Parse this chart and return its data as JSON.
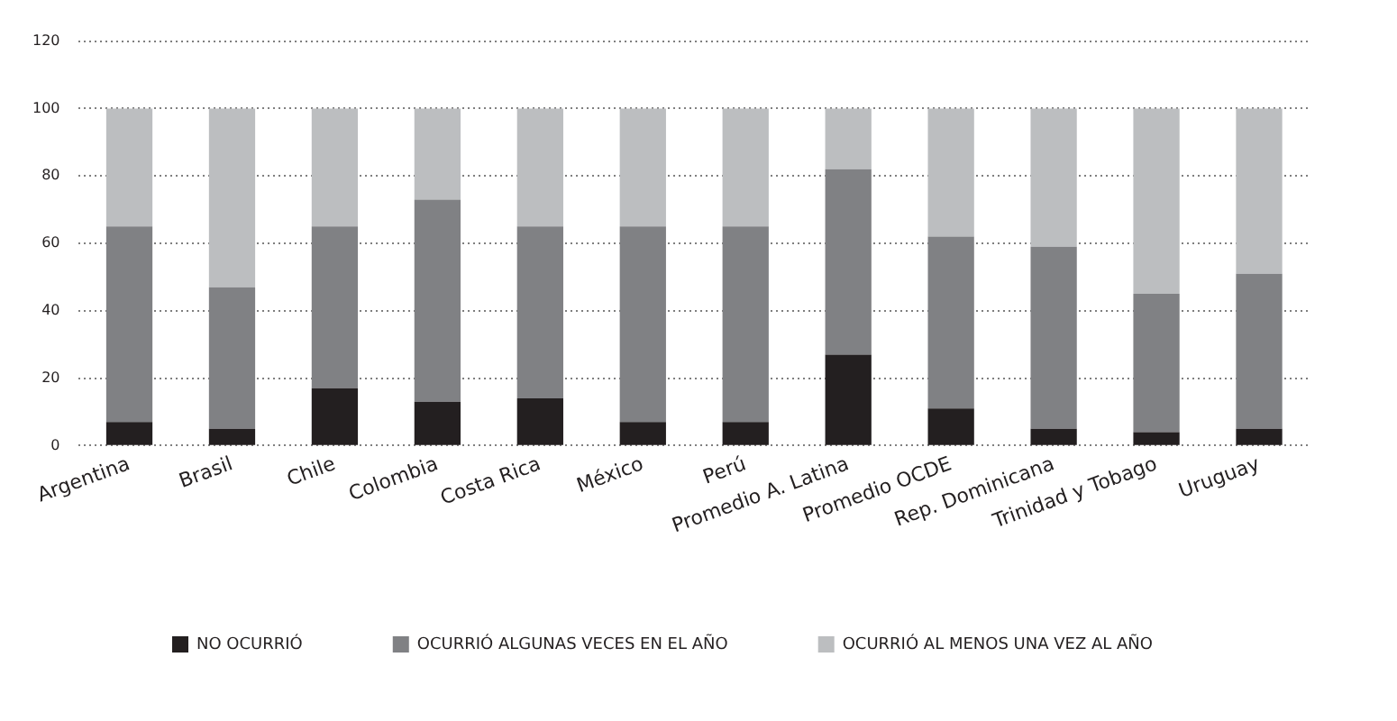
{
  "chart_data": {
    "type": "bar",
    "stacked": true,
    "categories": [
      "Argentina",
      "Brasil",
      "Chile",
      "Colombia",
      "Costa Rica",
      "México",
      "Perú",
      "Promedio A. Latina",
      "Promedio OCDE",
      "Rep. Dominicana",
      "Trinidad y Tobago",
      "Uruguay"
    ],
    "series": [
      {
        "name": "NO OCURRIÓ",
        "color": "#231f20",
        "values": [
          7,
          5,
          17,
          13,
          14,
          7,
          7,
          27,
          11,
          5,
          4,
          5
        ]
      },
      {
        "name": "OCURRIÓ ALGUNAS VECES EN EL AÑO",
        "color": "#808184",
        "values": [
          58,
          42,
          48,
          60,
          51,
          58,
          58,
          55,
          51,
          54,
          41,
          46
        ]
      },
      {
        "name": "OCURRIÓ AL MENOS UNA VEZ AL AÑO",
        "color": "#bcbec0",
        "values": [
          35,
          53,
          35,
          27,
          35,
          35,
          35,
          18,
          38,
          41,
          55,
          49
        ]
      }
    ],
    "ylim": [
      0,
      120
    ],
    "yticks": [
      0,
      20,
      40,
      60,
      80,
      100,
      120
    ],
    "grid": "y",
    "legend": "bottom"
  }
}
